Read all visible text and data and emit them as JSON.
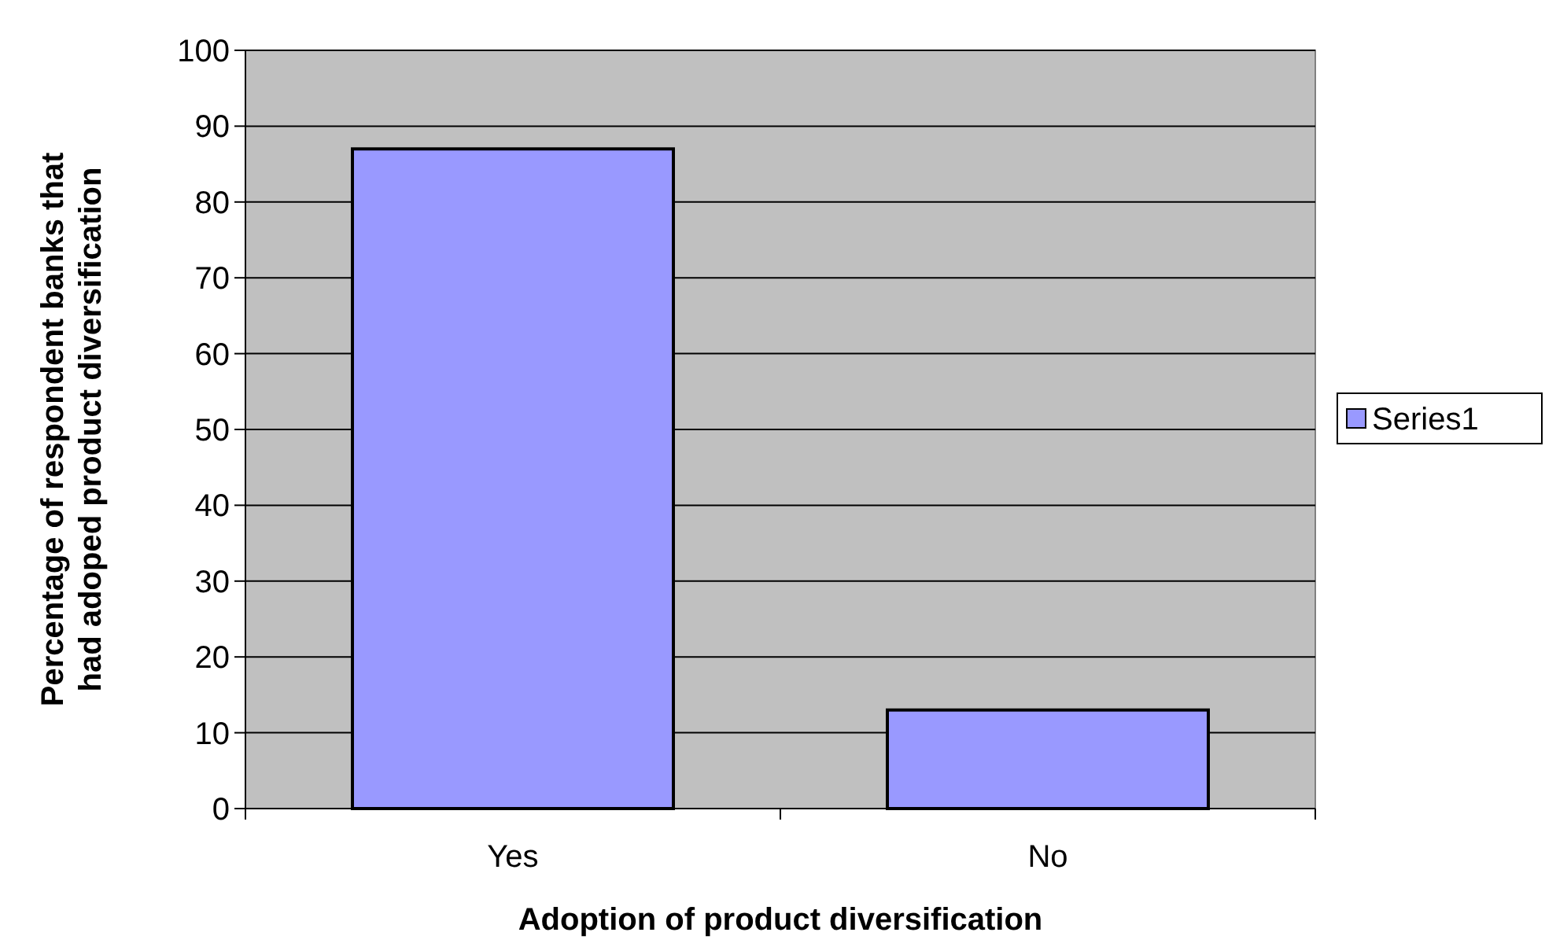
{
  "chart_data": {
    "type": "bar",
    "xlabel": "Adoption of product diversification",
    "ylabel": "Percentage of respondent banks that had adoped product diversification",
    "categories": [
      "Yes",
      "No"
    ],
    "series": [
      {
        "name": "Series1",
        "color": "#9999ff",
        "values": [
          87,
          13
        ]
      }
    ],
    "ylim": [
      0,
      100
    ],
    "yticks": [
      0,
      10,
      20,
      30,
      40,
      50,
      60,
      70,
      80,
      90,
      100
    ],
    "grid": "y",
    "legend": "right"
  }
}
